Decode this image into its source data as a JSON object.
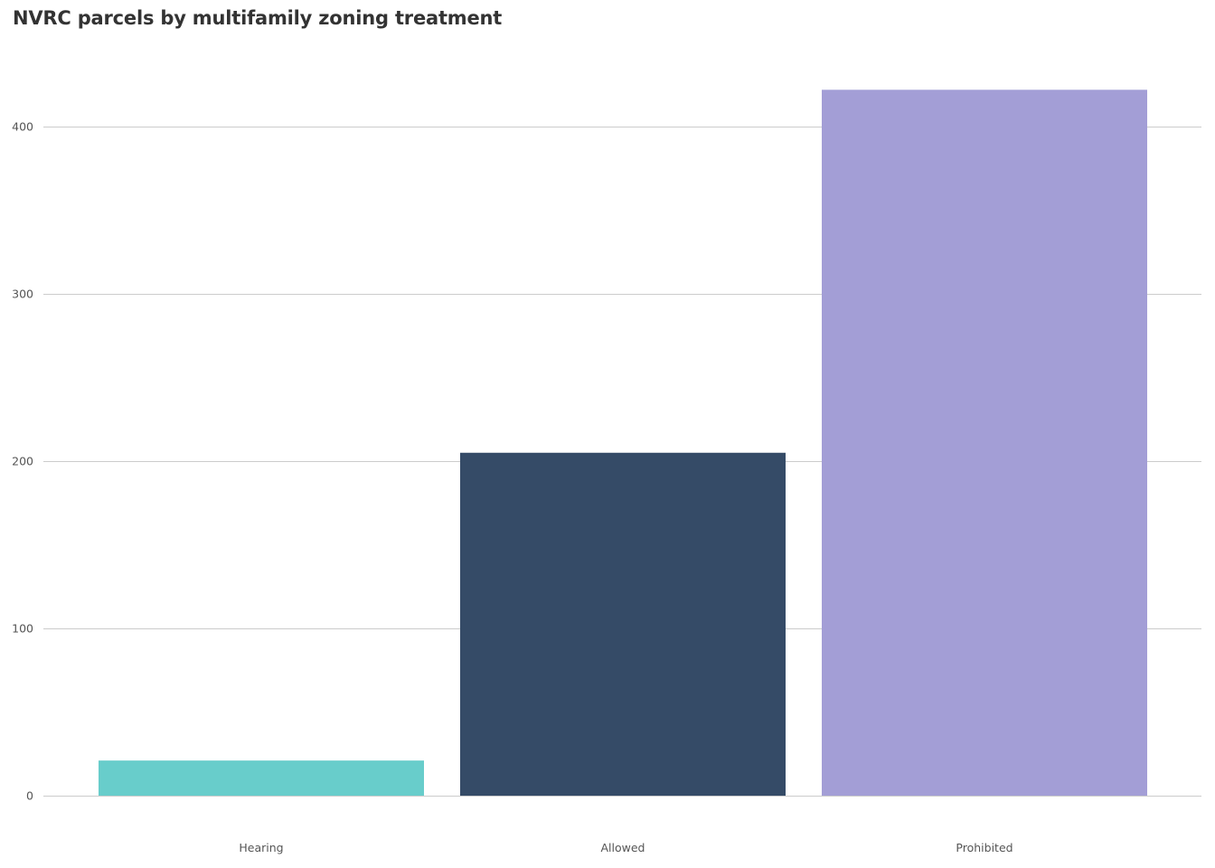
{
  "chart_data": {
    "type": "bar",
    "title": "NVRC parcels by multifamily zoning treatment",
    "xlabel": "",
    "ylabel": "",
    "categories": [
      "Hearing",
      "Allowed",
      "Prohibited"
    ],
    "values": [
      21,
      205,
      422
    ],
    "colors": [
      "#68cdcb",
      "#354b67",
      "#a39ed6"
    ],
    "yticks": [
      0,
      100,
      200,
      300,
      400
    ],
    "ylim": [
      0,
      422
    ],
    "grid": true,
    "legend": "none"
  }
}
